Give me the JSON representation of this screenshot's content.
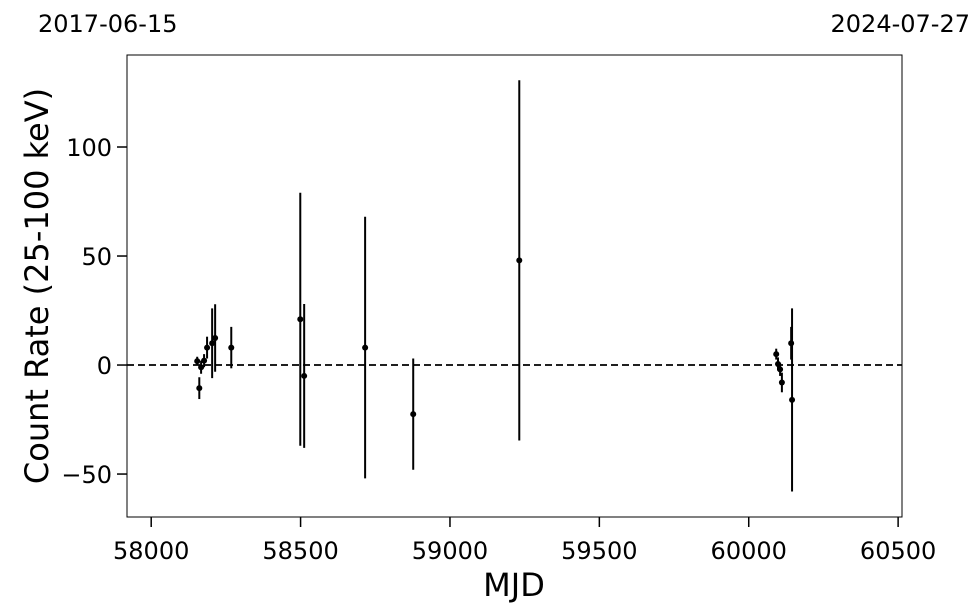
{
  "chart_data": {
    "type": "errorbar",
    "date_labels": {
      "left": "2017-06-15",
      "right": "2024-07-27"
    },
    "xlabel": "MJD",
    "ylabel": "Count Rate (25-100 keV)",
    "x": [
      58154,
      58161,
      58167,
      58177,
      58187,
      58204,
      58214,
      58268,
      58499,
      58512,
      58716,
      58877,
      59232,
      60092,
      60098,
      60105,
      60111,
      60142,
      60145
    ],
    "values": [
      1.8,
      -10.6,
      -1,
      2,
      8,
      10,
      12.4,
      8,
      21,
      -5,
      8,
      -22.5,
      48,
      5,
      0.5,
      -2,
      -8,
      10,
      -16
    ],
    "errors": [
      2,
      5,
      3,
      3,
      5,
      16,
      15.5,
      9.5,
      58,
      33,
      60,
      25.5,
      82.6,
      2.5,
      3,
      3,
      4.5,
      7.5,
      42
    ],
    "color": "#000000",
    "reference_line": 0,
    "xlim": [
      57919,
      60513
    ],
    "ylim": [
      -69.7,
      142.2
    ],
    "xticks": [
      58000,
      58500,
      59000,
      59500,
      60000,
      60500
    ],
    "yticks": [
      {
        "value": -50,
        "label": "−50"
      },
      0,
      50,
      100
    ]
  }
}
